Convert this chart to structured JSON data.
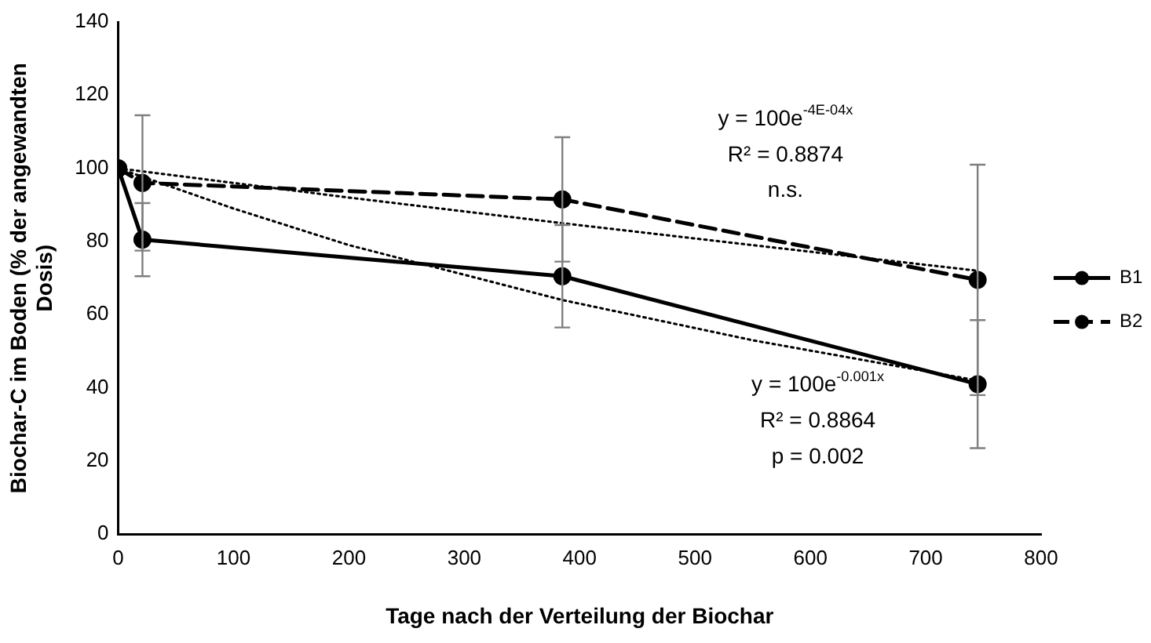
{
  "chart_data": {
    "type": "line",
    "xlabel": "Tage nach der Verteilung der Biochar",
    "ylabel": "Biochar-C im Boden (% der angewandten Dosis)",
    "xlim": [
      0,
      800
    ],
    "xticks": [
      0,
      100,
      200,
      300,
      400,
      500,
      600,
      700,
      800
    ],
    "ylim": [
      0,
      140
    ],
    "yticks": [
      0,
      20,
      40,
      60,
      80,
      100,
      120,
      140
    ],
    "grid": false,
    "legend": "right",
    "marker": "circle",
    "series": [
      {
        "name": "B1",
        "color": "#000000",
        "line_style": "solid",
        "x": [
          0,
          21,
          385,
          745
        ],
        "values": [
          100,
          80.5,
          70.5,
          41
        ],
        "errors": [
          null,
          10,
          14,
          17.5
        ]
      },
      {
        "name": "B2",
        "color": "#000000",
        "line_style": "dashed",
        "x": [
          0,
          21,
          385,
          745
        ],
        "values": [
          100,
          96,
          91.5,
          69.5
        ],
        "errors": [
          null,
          18.5,
          17,
          31.5
        ]
      },
      {
        "type": "line",
        "color": "#000000",
        "line_style": "dotted",
        "marker": "none",
        "x": [
          0,
          100,
          200,
          385,
          550,
          745
        ],
        "values": [
          100,
          89,
          79,
          64,
          53,
          42
        ]
      },
      {
        "type": "line",
        "color": "#000000",
        "line_style": "dotted",
        "marker": "none",
        "x": [
          0,
          200,
          385,
          550,
          745
        ],
        "values": [
          100,
          92,
          85,
          79,
          72
        ]
      }
    ],
    "annotations": [
      "y = 100e$^{-4E-04x}$",
      "R² = 0.8874",
      "n.s.",
      "y = 100e$^{-0.001x}$",
      "R² = 0.8864",
      "p = 0.002"
    ]
  }
}
